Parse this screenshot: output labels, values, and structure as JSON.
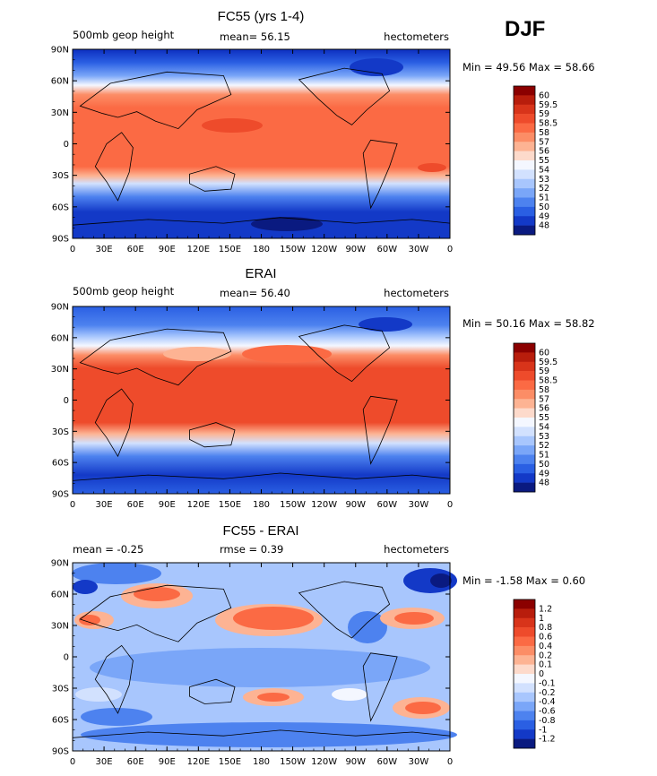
{
  "season": "DJF",
  "x_tick_labels": [
    "0",
    "30E",
    "60E",
    "90E",
    "120E",
    "150E",
    "180",
    "150W",
    "120W",
    "90W",
    "60W",
    "30W",
    "0"
  ],
  "y_tick_labels": [
    "90N",
    "60N",
    "30N",
    "0",
    "30S",
    "60S",
    "90S"
  ],
  "chart_data": [
    {
      "type": "heatmap",
      "title": "FC55 (yrs 1-4)",
      "left_string": "500mb geop height",
      "center_string": "mean=  56.15",
      "right_string": "hectometers",
      "min_max": "Min =  49.56 Max =  58.66",
      "min": 49.56,
      "max": 58.66,
      "mean": 56.15,
      "xlim": [
        0,
        360
      ],
      "ylim": [
        -90,
        90
      ],
      "colorbar_levels": [
        "60",
        "59.5",
        "59",
        "58.5",
        "58",
        "57",
        "56",
        "55",
        "54",
        "53",
        "52",
        "51",
        "50",
        "49",
        "48"
      ],
      "colorbar_colors": [
        "#8b0000",
        "#b81d0c",
        "#d8341a",
        "#ee4b2b",
        "#fb6a44",
        "#fc8d66",
        "#fdb393",
        "#fddacb",
        "#f4f7ff",
        "#d2e1fe",
        "#a8c6fd",
        "#7aa6f8",
        "#4d82ef",
        "#2a5fe3",
        "#1339c7",
        "#0a1a80"
      ]
    },
    {
      "type": "heatmap",
      "title": "ERAI",
      "left_string": "500mb geop height",
      "center_string": "mean=  56.40",
      "right_string": "hectometers",
      "min_max": "Min =  50.16 Max =  58.82",
      "min": 50.16,
      "max": 58.82,
      "mean": 56.4,
      "xlim": [
        0,
        360
      ],
      "ylim": [
        -90,
        90
      ],
      "colorbar_levels": [
        "60",
        "59.5",
        "59",
        "58.5",
        "58",
        "57",
        "56",
        "55",
        "54",
        "53",
        "52",
        "51",
        "50",
        "49",
        "48"
      ],
      "colorbar_colors": [
        "#8b0000",
        "#b81d0c",
        "#d8341a",
        "#ee4b2b",
        "#fb6a44",
        "#fc8d66",
        "#fdb393",
        "#fddacb",
        "#f4f7ff",
        "#d2e1fe",
        "#a8c6fd",
        "#7aa6f8",
        "#4d82ef",
        "#2a5fe3",
        "#1339c7",
        "#0a1a80"
      ]
    },
    {
      "type": "heatmap",
      "title": "FC55 - ERAI",
      "left_string": "mean =  -0.25",
      "center_string": "rmse =    0.39",
      "right_string": "hectometers",
      "min_max": "Min =  -1.58 Max =    0.60",
      "min": -1.58,
      "max": 0.6,
      "mean": -0.25,
      "rmse": 0.39,
      "xlim": [
        0,
        360
      ],
      "ylim": [
        -90,
        90
      ],
      "colorbar_levels": [
        "1.2",
        "1",
        "0.8",
        "0.6",
        "0.4",
        "0.2",
        "0.1",
        "0",
        "-0.1",
        "-0.2",
        "-0.4",
        "-0.6",
        "-0.8",
        "-1",
        "-1.2"
      ],
      "colorbar_colors": [
        "#8b0000",
        "#b81d0c",
        "#d8341a",
        "#ee4b2b",
        "#fb6a44",
        "#fc8d66",
        "#fdb393",
        "#fddacb",
        "#f4f7ff",
        "#d2e1fe",
        "#a8c6fd",
        "#7aa6f8",
        "#4d82ef",
        "#2a5fe3",
        "#1339c7",
        "#0a1a80"
      ]
    }
  ]
}
